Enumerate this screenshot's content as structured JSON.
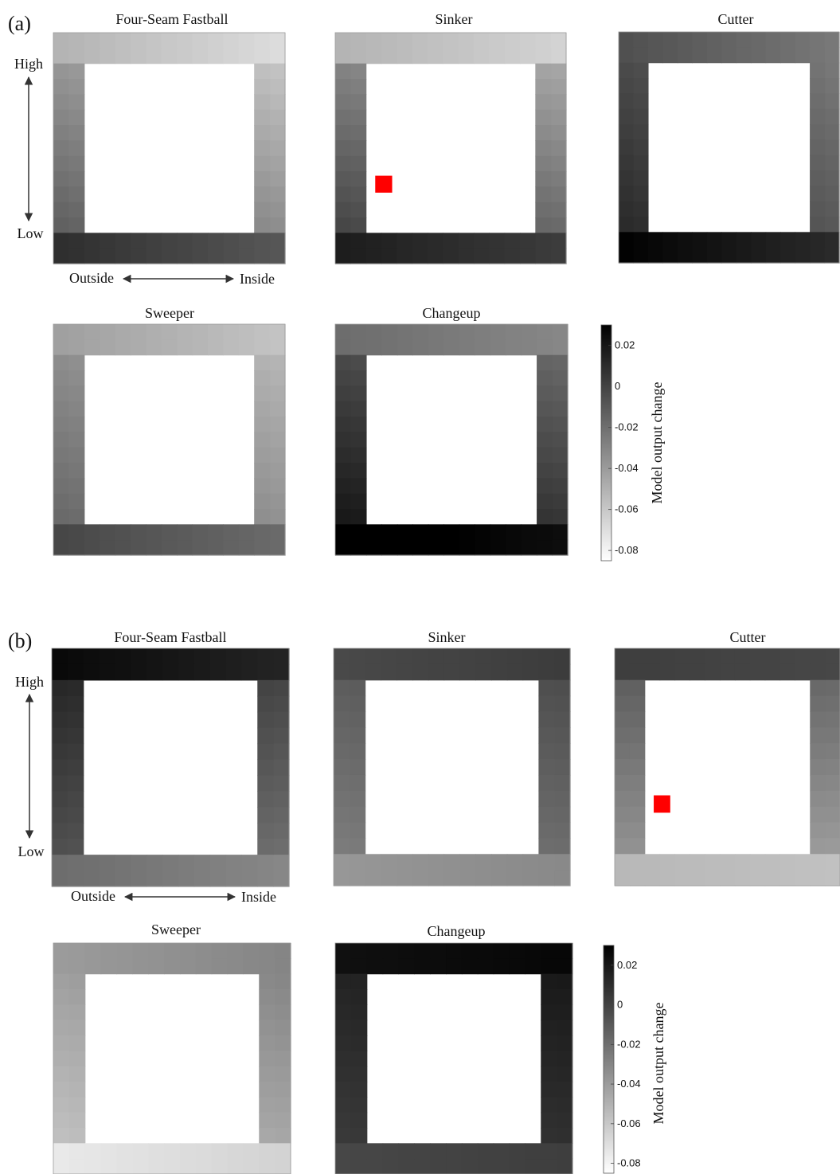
{
  "figure": {
    "panel_a_label": "(a)",
    "panel_b_label": "(b)",
    "axis_high": "High",
    "axis_low": "Low",
    "axis_outside": "Outside",
    "axis_inside": "Inside"
  },
  "colors": {
    "highlight": "#ff0000"
  },
  "chart_data": [
    {
      "type": "heatmap",
      "panel": "(a)",
      "colorbar": {
        "label": "Model output change",
        "range": [
          -0.085,
          0.03
        ],
        "ticks": [
          "0.02",
          "0",
          "-0.02",
          "-0.04",
          "-0.06",
          "-0.08"
        ]
      },
      "grid": "15x15 border ring around strike zone",
      "subplots": [
        {
          "title": "Four-Seam Fastball",
          "top": -0.06,
          "bottom": 0.0,
          "left": -0.02,
          "right": -0.065,
          "highlight": null
        },
        {
          "title": "Sinker",
          "top": -0.058,
          "bottom": 0.01,
          "left": -0.005,
          "right": -0.04,
          "highlight": {
            "row": 9,
            "col": 2
          }
        },
        {
          "title": "Cutter",
          "top": -0.015,
          "bottom": 0.02,
          "left": 0.005,
          "right": -0.04,
          "highlight": null
        },
        {
          "title": "Sweeper",
          "top": -0.05,
          "bottom": -0.01,
          "left": -0.02,
          "right": -0.06,
          "highlight": null
        },
        {
          "title": "Changeup",
          "top": -0.025,
          "bottom": 0.03,
          "left": 0.015,
          "right": -0.015,
          "highlight": null
        }
      ]
    },
    {
      "type": "heatmap",
      "panel": "(b)",
      "colorbar": {
        "label": "Model output change",
        "range": [
          -0.085,
          0.03
        ],
        "ticks": [
          "0.02",
          "0",
          "-0.02",
          "-0.04",
          "-0.06",
          "-0.08"
        ]
      },
      "grid": "15x15 border ring around strike zone",
      "subplots": [
        {
          "title": "Four-Seam Fastball",
          "top": 0.02,
          "bottom": -0.025,
          "left": 0.01,
          "right": -0.02,
          "highlight": null
        },
        {
          "title": "Sinker",
          "top": 0.0,
          "bottom": -0.035,
          "left": -0.02,
          "right": -0.005,
          "highlight": null
        },
        {
          "title": "Cutter",
          "top": 0.0,
          "bottom": -0.055,
          "left": -0.02,
          "right": -0.03,
          "highlight": {
            "row": 9,
            "col": 2
          }
        },
        {
          "title": "Sweeper",
          "top": -0.035,
          "bottom": -0.07,
          "left": -0.045,
          "right": -0.02,
          "highlight": null
        },
        {
          "title": "Changeup",
          "top": 0.025,
          "bottom": 0.0,
          "left": 0.005,
          "right": 0.015,
          "highlight": null
        }
      ]
    }
  ]
}
